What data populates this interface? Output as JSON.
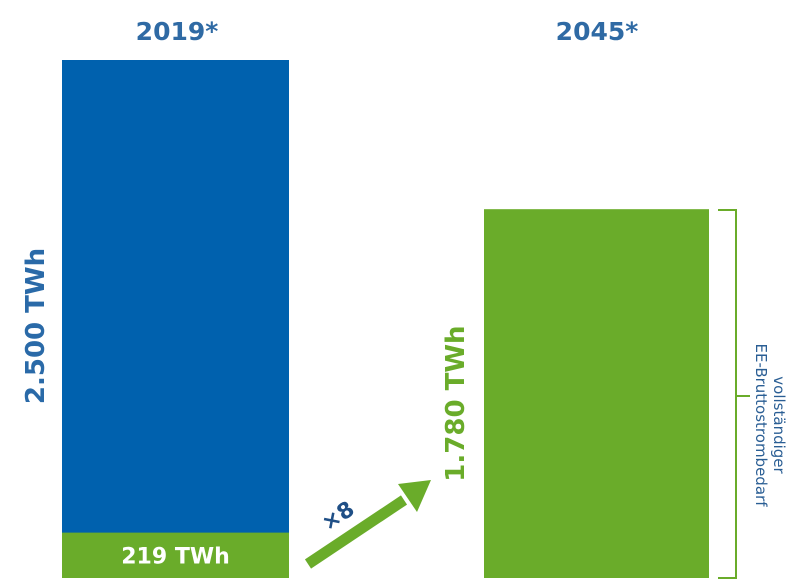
{
  "chart_data": {
    "type": "bar",
    "categories": [
      "2019*",
      "2045*"
    ],
    "unit": "TWh",
    "series": [
      {
        "values": [
          2500,
          null
        ]
      },
      {
        "values": [
          219,
          1780
        ]
      }
    ],
    "labels": {
      "total_2019": "2.500 TWh",
      "renewable_2019": "219 TWh",
      "total_2045": "1.780 TWh",
      "factor": "×8",
      "bracket_line1": "vollständiger",
      "bracket_line2": "EE-Bruttostrombedarf"
    },
    "colors": {
      "total": "#0061ae",
      "renewable": "#6aac2a",
      "year_text": "#2f6aa4",
      "total_text": "#2a6aa8",
      "green_text": "#6aac2a"
    },
    "ylim": [
      0,
      2500
    ],
    "grid": false,
    "legend": "none"
  }
}
